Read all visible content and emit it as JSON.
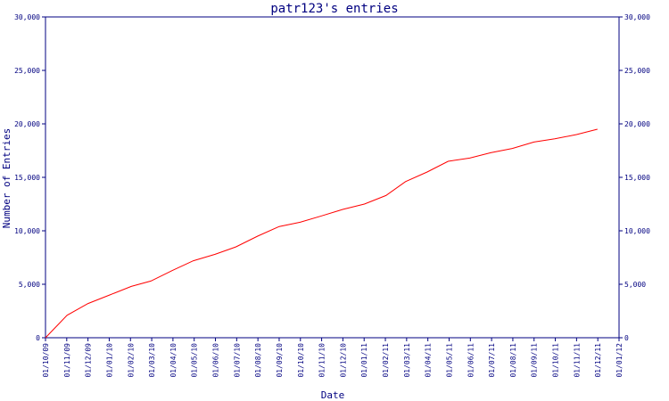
{
  "chart_data": {
    "type": "line",
    "title": "patr123's entries",
    "xlabel": "Date",
    "ylabel": "Number of Entries",
    "ylim": [
      0,
      30000
    ],
    "yticks": [
      "0",
      "5,000",
      "10,000",
      "15,000",
      "20,000",
      "25,000",
      "30,000"
    ],
    "ytick_values": [
      0,
      5000,
      10000,
      15000,
      20000,
      25000,
      30000
    ],
    "xticks": [
      "01/10/09",
      "01/11/09",
      "01/12/09",
      "01/01/10",
      "01/02/10",
      "01/03/10",
      "01/04/10",
      "01/05/10",
      "01/06/10",
      "01/07/10",
      "01/08/10",
      "01/09/10",
      "01/10/10",
      "01/11/10",
      "01/12/10",
      "01/01/11",
      "01/02/11",
      "01/03/11",
      "01/04/11",
      "01/05/11",
      "01/06/11",
      "01/07/11",
      "01/08/11",
      "01/09/11",
      "01/10/11",
      "01/11/11",
      "01/12/11",
      "01/01/12"
    ],
    "grid": false,
    "right_axis": true,
    "series": [
      {
        "color": "#ff0000",
        "points": [
          {
            "x": "2009-10-01",
            "y": 0
          },
          {
            "x": "2009-11-01",
            "y": 2100
          },
          {
            "x": "2009-12-01",
            "y": 3200
          },
          {
            "x": "2010-01-01",
            "y": 4000
          },
          {
            "x": "2010-02-01",
            "y": 4800
          },
          {
            "x": "2010-03-01",
            "y": 5300
          },
          {
            "x": "2010-04-01",
            "y": 6300
          },
          {
            "x": "2010-05-01",
            "y": 7200
          },
          {
            "x": "2010-06-01",
            "y": 7800
          },
          {
            "x": "2010-07-01",
            "y": 8500
          },
          {
            "x": "2010-08-01",
            "y": 9500
          },
          {
            "x": "2010-09-01",
            "y": 10400
          },
          {
            "x": "2010-10-01",
            "y": 10800
          },
          {
            "x": "2010-11-01",
            "y": 11400
          },
          {
            "x": "2010-12-01",
            "y": 12000
          },
          {
            "x": "2011-01-01",
            "y": 12500
          },
          {
            "x": "2011-02-01",
            "y": 13300
          },
          {
            "x": "2011-03-01",
            "y": 14600
          },
          {
            "x": "2011-04-01",
            "y": 15500
          },
          {
            "x": "2011-05-01",
            "y": 16500
          },
          {
            "x": "2011-06-01",
            "y": 16800
          },
          {
            "x": "2011-07-01",
            "y": 17300
          },
          {
            "x": "2011-08-01",
            "y": 17700
          },
          {
            "x": "2011-09-01",
            "y": 18300
          },
          {
            "x": "2011-10-01",
            "y": 18600
          },
          {
            "x": "2011-11-01",
            "y": 19000
          },
          {
            "x": "2011-12-01",
            "y": 19500
          }
        ]
      }
    ],
    "colors": {
      "axis": "#000080",
      "text": "#000080",
      "line": "#ff0000",
      "background": "#ffffff"
    }
  }
}
